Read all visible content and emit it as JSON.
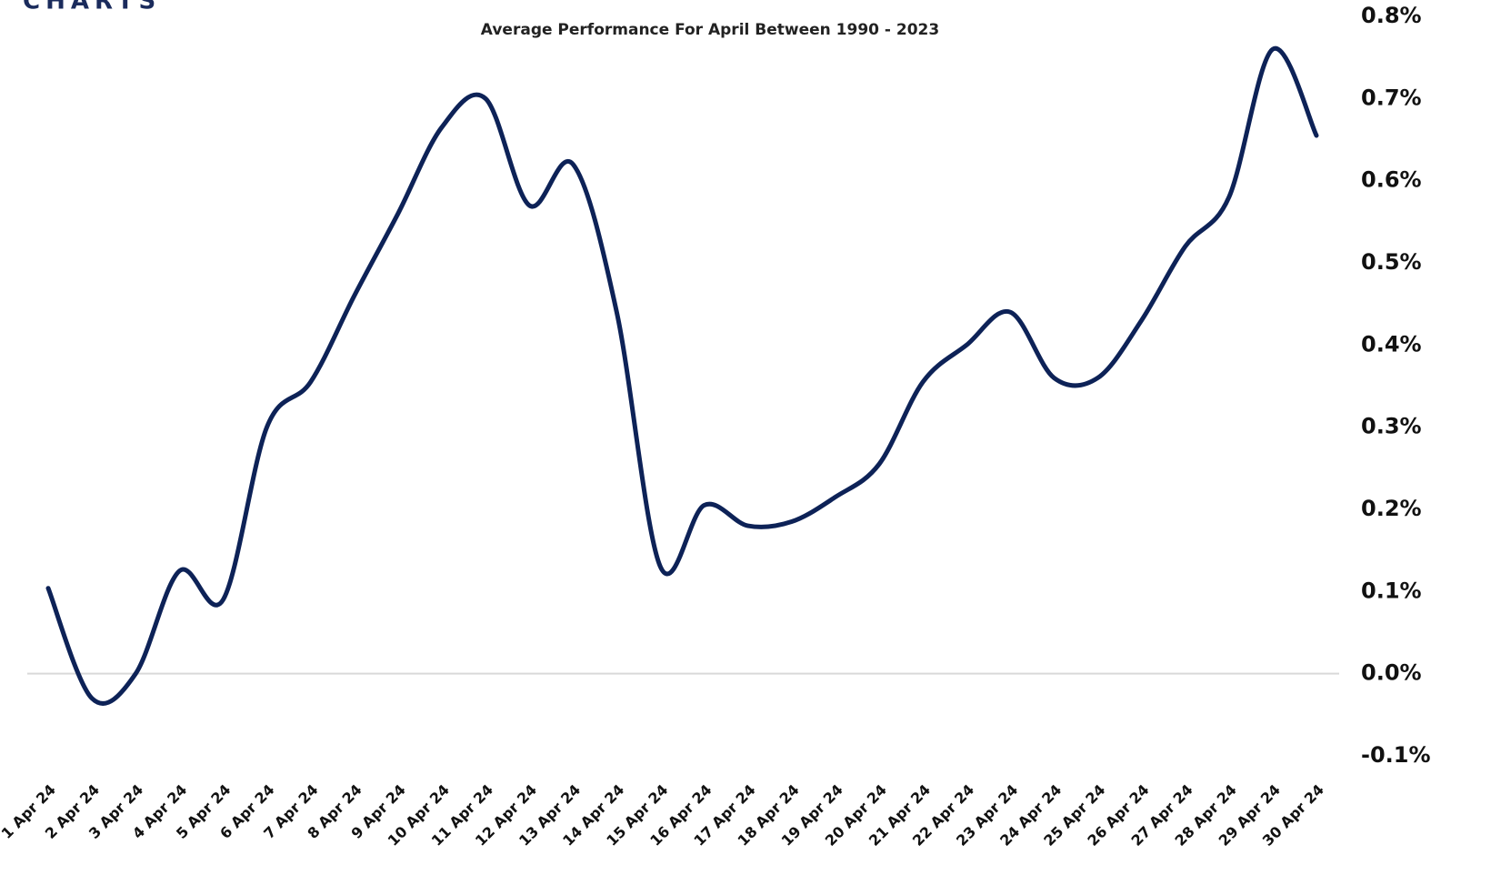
{
  "logo": "CHARTS",
  "chart_data": {
    "type": "line",
    "title": "Average Performance For April Between 1990 - 2023",
    "categories": [
      "1 Apr 24",
      "2 Apr 24",
      "3 Apr 24",
      "4 Apr 24",
      "5 Apr 24",
      "6 Apr 24",
      "7 Apr 24",
      "8 Apr 24",
      "9 Apr 24",
      "10 Apr 24",
      "11 Apr 24",
      "12 Apr 24",
      "13 Apr 24",
      "14 Apr 24",
      "15 Apr 24",
      "16 Apr 24",
      "17 Apr 24",
      "18 Apr 24",
      "19 Apr 24",
      "20 Apr 24",
      "21 Apr 24",
      "22 Apr 24",
      "23 Apr 24",
      "24 Apr 24",
      "25 Apr 24",
      "26 Apr 24",
      "27 Apr 24",
      "28 Apr 24",
      "29 Apr 24",
      "30 Apr 24"
    ],
    "values": [
      0.104,
      -0.03,
      0.0,
      0.125,
      0.09,
      0.3,
      0.355,
      0.46,
      0.56,
      0.665,
      0.7,
      0.57,
      0.62,
      0.44,
      0.13,
      0.205,
      0.18,
      0.185,
      0.215,
      0.255,
      0.355,
      0.4,
      0.44,
      0.36,
      0.36,
      0.43,
      0.52,
      0.58,
      0.76,
      0.655
    ],
    "color": "#0d2257",
    "ylim": [
      -0.1,
      0.8
    ],
    "yticks": [
      {
        "value": -0.1,
        "label": "-0.1%"
      },
      {
        "value": 0.0,
        "label": "0.0%"
      },
      {
        "value": 0.1,
        "label": "0.1%"
      },
      {
        "value": 0.2,
        "label": "0.2%"
      },
      {
        "value": 0.3,
        "label": "0.3%"
      },
      {
        "value": 0.4,
        "label": "0.4%"
      },
      {
        "value": 0.5,
        "label": "0.5%"
      },
      {
        "value": 0.6,
        "label": "0.6%"
      },
      {
        "value": 0.7,
        "label": "0.7%"
      },
      {
        "value": 0.8,
        "label": "0.8%"
      }
    ],
    "zero_line": true
  }
}
